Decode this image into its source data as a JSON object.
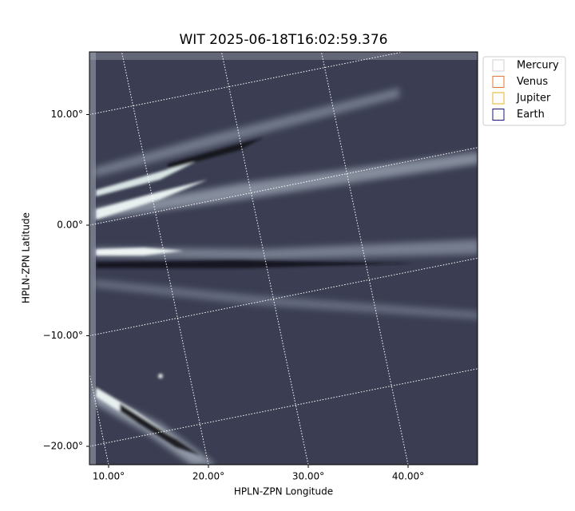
{
  "chart_data": {
    "type": "image",
    "title": "WIT 2025-06-18T16:02:59.376",
    "x_label": "HPLN-ZPN Longitude",
    "y_label": "HPLN-ZPN Latitude",
    "xticks": [
      {
        "value": 10,
        "label": "10.00°"
      },
      {
        "value": 20,
        "label": "20.00°"
      },
      {
        "value": 30,
        "label": "30.00°"
      },
      {
        "value": 40,
        "label": "40.00°"
      }
    ],
    "yticks": [
      {
        "value": 10,
        "label": "10.00°"
      },
      {
        "value": 0,
        "label": "0.00°"
      },
      {
        "value": -10,
        "label": "−10.00°"
      },
      {
        "value": -20,
        "label": "−20.00°"
      }
    ],
    "grid": true,
    "legend": [
      {
        "name": "Mercury",
        "color": "#d0d0d0"
      },
      {
        "name": "Venus",
        "color": "#e0783a"
      },
      {
        "name": "Jupiter",
        "color": "#e8b020"
      },
      {
        "name": "Earth",
        "color": "#15157a"
      }
    ]
  }
}
